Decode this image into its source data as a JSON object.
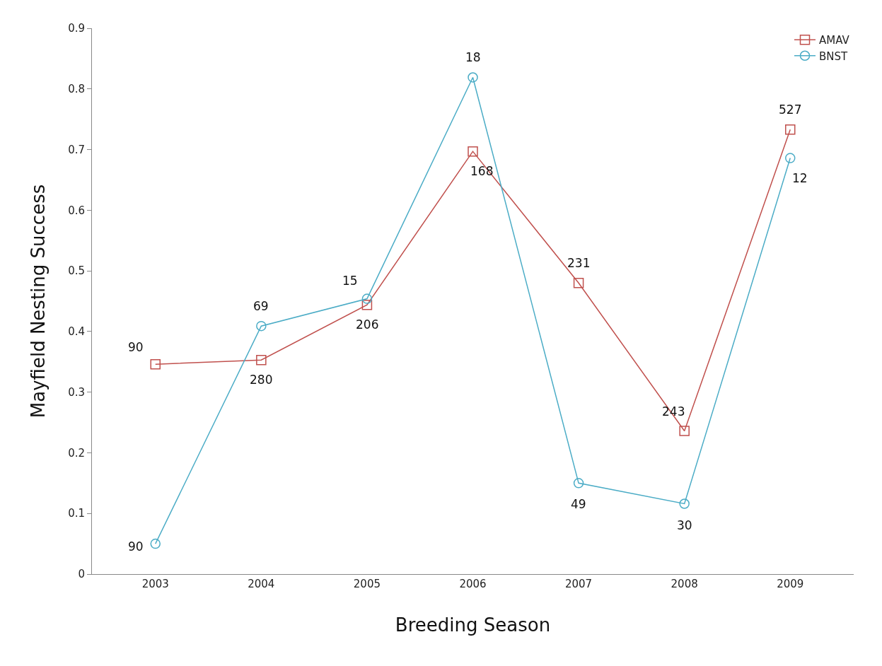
{
  "chart_data": {
    "type": "line",
    "xlabel": "Breeding Season",
    "ylabel": "Mayfield Nesting Success",
    "categories": [
      "2003",
      "2004",
      "2005",
      "2006",
      "2007",
      "2008",
      "2009"
    ],
    "series": [
      {
        "name": "AMAV",
        "color": "#c0504d",
        "marker": "square",
        "values": [
          0.346,
          0.353,
          0.444,
          0.697,
          0.48,
          0.236,
          0.733
        ]
      },
      {
        "name": "BNST",
        "color": "#4bacc6",
        "marker": "circle",
        "values": [
          0.05,
          0.409,
          0.454,
          0.819,
          0.15,
          0.116,
          0.686
        ]
      }
    ],
    "annotations": [
      {
        "text": "90",
        "x": "2003",
        "y": 0.346
      },
      {
        "text": "280",
        "x": "2004",
        "y": 0.353
      },
      {
        "text": "206",
        "x": "2005",
        "y": 0.444
      },
      {
        "text": "168",
        "x": "2006",
        "y": 0.697
      },
      {
        "text": "231",
        "x": "2007",
        "y": 0.48
      },
      {
        "text": "243",
        "x": "2008",
        "y": 0.236
      },
      {
        "text": "527",
        "x": "2009",
        "y": 0.733
      },
      {
        "text": "90",
        "x": "2003",
        "y": 0.05
      },
      {
        "text": "69",
        "x": "2004",
        "y": 0.409
      },
      {
        "text": "15",
        "x": "2005",
        "y": 0.454
      },
      {
        "text": "18",
        "x": "2006",
        "y": 0.819
      },
      {
        "text": "49",
        "x": "2007",
        "y": 0.15
      },
      {
        "text": "30",
        "x": "2008",
        "y": 0.116
      },
      {
        "text": "12",
        "x": "2009",
        "y": 0.686
      }
    ],
    "ylim": [
      0,
      0.9
    ],
    "yticks": [
      0,
      0.1,
      0.2,
      0.3,
      0.4,
      0.5,
      0.6,
      0.7,
      0.8,
      0.9
    ],
    "legend": "top right",
    "line_style": "solid"
  }
}
